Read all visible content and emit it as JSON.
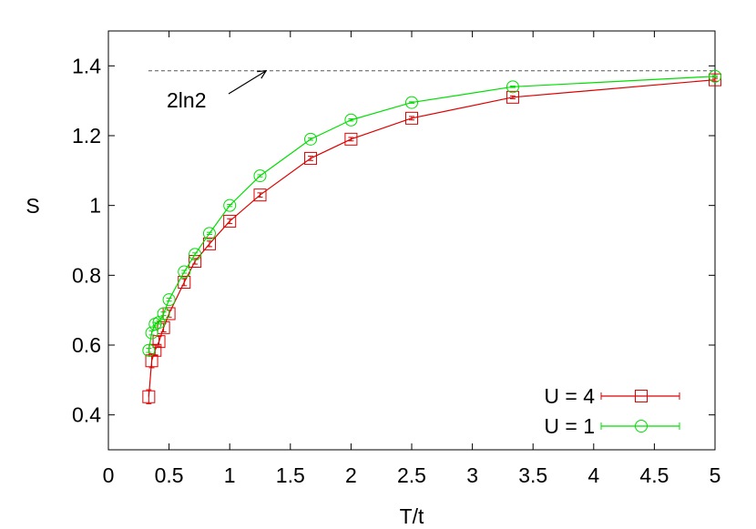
{
  "chart_data": {
    "type": "line",
    "title": "",
    "xlabel": "T/t",
    "ylabel": "S",
    "xlim": [
      0,
      5
    ],
    "ylim": [
      0.3,
      1.5
    ],
    "xticks": [
      0,
      0.5,
      1,
      1.5,
      2,
      2.5,
      3,
      3.5,
      4,
      4.5,
      5
    ],
    "xtick_labels": [
      "0",
      "0.5",
      "1",
      "1.5",
      "2",
      "2.5",
      "3",
      "3.5",
      "4",
      "4.5",
      "5"
    ],
    "yticks": [
      0.4,
      0.6,
      0.8,
      1.0,
      1.2,
      1.4
    ],
    "ytick_labels": [
      "0.4",
      "0.6",
      "0.8",
      "1",
      "1.2",
      "1.4"
    ],
    "grid": false,
    "legend_position": "bottom-right",
    "series": [
      {
        "name": "U = 4",
        "color": "#dd0000",
        "marker": "square",
        "x": [
          0.333,
          0.357,
          0.385,
          0.417,
          0.455,
          0.5,
          0.625,
          0.714,
          0.833,
          1.0,
          1.25,
          1.667,
          2.0,
          2.5,
          3.333,
          5.0
        ],
        "y": [
          0.452,
          0.555,
          0.585,
          0.61,
          0.65,
          0.69,
          0.78,
          0.84,
          0.89,
          0.955,
          1.03,
          1.135,
          1.19,
          1.25,
          1.31,
          1.36
        ],
        "yerr": [
          0.02,
          0.02,
          0.015,
          0.015,
          0.012,
          0.01,
          0.01,
          0.008,
          0.008,
          0.007,
          0.006,
          0.006,
          0.005,
          0.005,
          0.004,
          0.004
        ]
      },
      {
        "name": "U = 1",
        "color": "#00dd00",
        "marker": "circle",
        "x": [
          0.333,
          0.357,
          0.385,
          0.417,
          0.455,
          0.5,
          0.625,
          0.714,
          0.833,
          1.0,
          1.25,
          1.667,
          2.0,
          2.5,
          3.333,
          5.0
        ],
        "y": [
          0.585,
          0.635,
          0.66,
          0.665,
          0.69,
          0.73,
          0.81,
          0.86,
          0.92,
          1.0,
          1.085,
          1.19,
          1.245,
          1.295,
          1.34,
          1.37
        ],
        "yerr": [
          0.006,
          0.006,
          0.005,
          0.005,
          0.005,
          0.004,
          0.004,
          0.004,
          0.003,
          0.003,
          0.003,
          0.003,
          0.003,
          0.002,
          0.002,
          0.002
        ]
      }
    ],
    "reference_line": {
      "y": 1.386,
      "x_from": 0.33,
      "x_to": 5.0,
      "color": "#555555",
      "style": "dashed"
    },
    "annotations": [
      {
        "text": "2ln2",
        "arrow_to_x": 1.3,
        "arrow_to_y": 1.386
      }
    ]
  }
}
